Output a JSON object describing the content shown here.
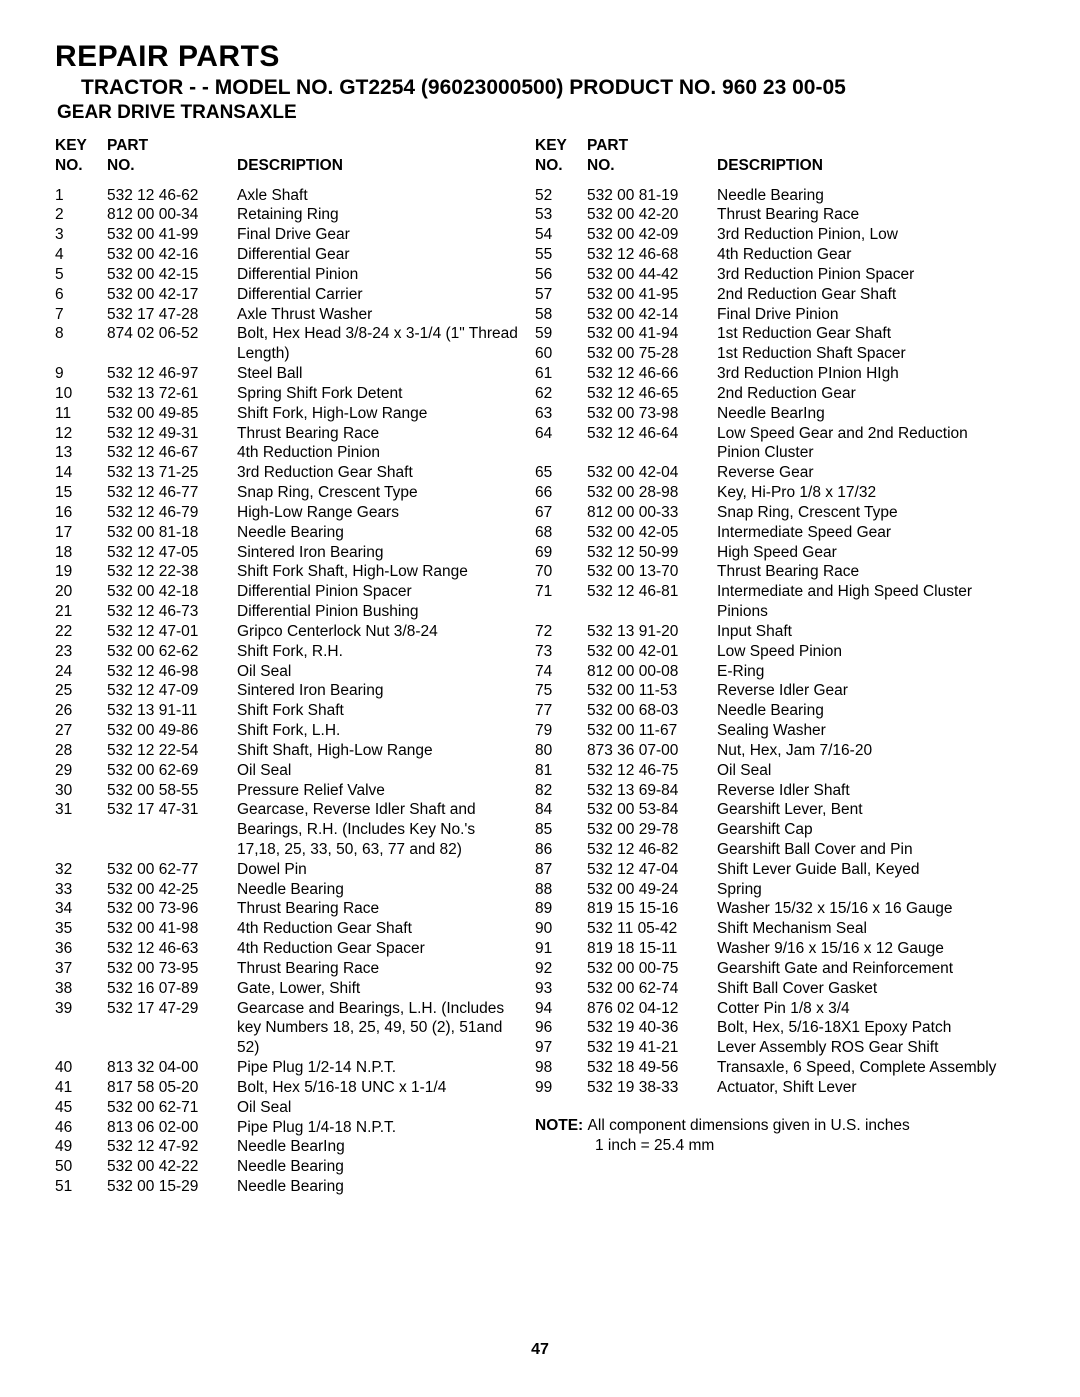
{
  "title": "REPAIR PARTS",
  "subtitle": "TRACTOR - - MODEL NO. GT2254 (96023000500) PRODUCT NO. 960 23 00-05",
  "section": "GEAR DRIVE TRANSAXLE",
  "headers": {
    "key1": "KEY",
    "key2": "NO.",
    "part1": "PART",
    "part2": "NO.",
    "desc": "DESCRIPTION"
  },
  "left": [
    {
      "k": "1",
      "p": "532 12 46-62",
      "d": "Axle Shaft"
    },
    {
      "k": "2",
      "p": "812 00 00-34",
      "d": "Retaining Ring"
    },
    {
      "k": "3",
      "p": "532 00 41-99",
      "d": "Final Drive Gear"
    },
    {
      "k": "4",
      "p": "532 00 42-16",
      "d": "Differential Gear"
    },
    {
      "k": "5",
      "p": "532 00 42-15",
      "d": "Differential Pinion"
    },
    {
      "k": "6",
      "p": "532 00 42-17",
      "d": "Differential Carrier"
    },
    {
      "k": "7",
      "p": "532 17 47-28",
      "d": "Axle Thrust Washer"
    },
    {
      "k": "8",
      "p": "874 02 06-52",
      "d": "Bolt, Hex Head  3/8-24 x 3-1/4 (1\" Thread Length)"
    },
    {
      "k": "9",
      "p": "532 12 46-97",
      "d": "Steel Ball"
    },
    {
      "k": "10",
      "p": "532 13 72-61",
      "d": "Spring Shift Fork Detent"
    },
    {
      "k": "11",
      "p": "532 00 49-85",
      "d": "Shift Fork, High-Low Range"
    },
    {
      "k": "12",
      "p": "532 12 49-31",
      "d": "Thrust Bearing Race"
    },
    {
      "k": "13",
      "p": "532 12 46-67",
      "d": "4th Reduction Pinion"
    },
    {
      "k": "14",
      "p": "532 13 71-25",
      "d": "3rd Reduction Gear Shaft"
    },
    {
      "k": "15",
      "p": "532 12 46-77",
      "d": "Snap Ring, Crescent Type"
    },
    {
      "k": "16",
      "p": "532 12 46-79",
      "d": "High-Low Range Gears"
    },
    {
      "k": "17",
      "p": "532 00 81-18",
      "d": "Needle Bearing"
    },
    {
      "k": "18",
      "p": "532 12 47-05",
      "d": "Sintered Iron Bearing"
    },
    {
      "k": "19",
      "p": "532 12 22-38",
      "d": "Shift Fork Shaft, High-Low Range"
    },
    {
      "k": "20",
      "p": "532 00 42-18",
      "d": "Differential Pinion Spacer"
    },
    {
      "k": "21",
      "p": "532 12 46-73",
      "d": "Differential Pinion Bushing"
    },
    {
      "k": "22",
      "p": "532 12 47-01",
      "d": "Gripco Centerlock Nut  3/8-24"
    },
    {
      "k": "23",
      "p": "532 00 62-62",
      "d": "Shift Fork, R.H."
    },
    {
      "k": "24",
      "p": "532 12 46-98",
      "d": "Oil Seal"
    },
    {
      "k": "25",
      "p": "532 12 47-09",
      "d": "Sintered Iron Bearing"
    },
    {
      "k": "26",
      "p": "532 13 91-11",
      "d": "Shift Fork Shaft"
    },
    {
      "k": "27",
      "p": "532 00 49-86",
      "d": "Shift Fork, L.H."
    },
    {
      "k": "28",
      "p": "532 12 22-54",
      "d": "Shift Shaft, High-Low Range"
    },
    {
      "k": "29",
      "p": "532 00 62-69",
      "d": "Oil Seal"
    },
    {
      "k": "30",
      "p": "532 00 58-55",
      "d": "Pressure Relief Valve"
    },
    {
      "k": "31",
      "p": "532 17 47-31",
      "d": "Gearcase, Reverse Idler Shaft and Bearings, R.H. (Includes Key No.'s 17,18, 25, 33, 50, 63, 77 and 82)"
    },
    {
      "k": "32",
      "p": "532 00 62-77",
      "d": "Dowel Pin"
    },
    {
      "k": "33",
      "p": "532 00 42-25",
      "d": "Needle Bearing"
    },
    {
      "k": "34",
      "p": "532 00 73-96",
      "d": "Thrust Bearing Race"
    },
    {
      "k": "35",
      "p": "532 00 41-98",
      "d": "4th Reduction Gear Shaft"
    },
    {
      "k": "36",
      "p": "532 12 46-63",
      "d": "4th Reduction Gear Spacer"
    },
    {
      "k": "37",
      "p": "532 00 73-95",
      "d": "Thrust Bearing Race"
    },
    {
      "k": "38",
      "p": "532 16 07-89",
      "d": "Gate, Lower, Shift"
    },
    {
      "k": "39",
      "p": "532 17 47-29",
      "d": "Gearcase and Bearings, L.H. (Includes key Numbers 18, 25, 49, 50 (2), 51and 52)"
    },
    {
      "k": "40",
      "p": "813 32 04-00",
      "d": "Pipe Plug  1/2-14 N.P.T."
    },
    {
      "k": "41",
      "p": "817 58 05-20",
      "d": "Bolt, Hex  5/16-18 UNC x 1-1/4"
    },
    {
      "k": "45",
      "p": "532 00 62-71",
      "d": "Oil Seal"
    },
    {
      "k": "46",
      "p": "813 06 02-00",
      "d": "Pipe Plug  1/4-18 N.P.T."
    },
    {
      "k": "49",
      "p": "532 12 47-92",
      "d": "Needle BearIng"
    },
    {
      "k": "50",
      "p": "532 00 42-22",
      "d": "Needle Bearing"
    },
    {
      "k": "51",
      "p": "532 00 15-29",
      "d": "Needle Bearing"
    }
  ],
  "right": [
    {
      "k": "52",
      "p": "532 00 81-19",
      "d": "Needle Bearing"
    },
    {
      "k": "53",
      "p": "532 00 42-20",
      "d": "Thrust Bearing Race"
    },
    {
      "k": "54",
      "p": "532 00 42-09",
      "d": "3rd Reduction Pinion, Low"
    },
    {
      "k": "55",
      "p": "532 12 46-68",
      "d": "4th Reduction Gear"
    },
    {
      "k": "56",
      "p": "532 00 44-42",
      "d": "3rd Reduction Pinion Spacer"
    },
    {
      "k": "57",
      "p": "532 00 41-95",
      "d": "2nd Reduction Gear Shaft"
    },
    {
      "k": "58",
      "p": "532 00 42-14",
      "d": "Final Drive Pinion"
    },
    {
      "k": "59",
      "p": "532 00 41-94",
      "d": "1st Reduction Gear Shaft"
    },
    {
      "k": "60",
      "p": "532 00 75-28",
      "d": "1st Reduction Shaft Spacer"
    },
    {
      "k": "61",
      "p": "532 12 46-66",
      "d": "3rd Reduction PInion HIgh"
    },
    {
      "k": "62",
      "p": "532 12 46-65",
      "d": "2nd Reduction Gear"
    },
    {
      "k": "63",
      "p": "532 00 73-98",
      "d": "Needle BearIng"
    },
    {
      "k": "64",
      "p": "532 12 46-64",
      "d": "Low Speed Gear and 2nd Reduction Pinion Cluster"
    },
    {
      "k": "65",
      "p": "532 00 42-04",
      "d": "Reverse Gear"
    },
    {
      "k": "66",
      "p": "532 00 28-98",
      "d": "Key, Hi-Pro  1/8 x 17/32"
    },
    {
      "k": "67",
      "p": "812 00 00-33",
      "d": "Snap Ring, Crescent Type"
    },
    {
      "k": "68",
      "p": "532 00 42-05",
      "d": "Intermediate Speed Gear"
    },
    {
      "k": "69",
      "p": "532 12 50-99",
      "d": "High Speed Gear"
    },
    {
      "k": "70",
      "p": "532 00 13-70",
      "d": "Thrust Bearing Race"
    },
    {
      "k": "71",
      "p": "532 12 46-81",
      "d": "Intermediate and High Speed Cluster Pinions"
    },
    {
      "k": "72",
      "p": "532 13 91-20",
      "d": "Input Shaft"
    },
    {
      "k": "73",
      "p": "532 00 42-01",
      "d": "Low Speed Pinion"
    },
    {
      "k": "74",
      "p": "812 00 00-08",
      "d": "E-Ring"
    },
    {
      "k": "75",
      "p": "532 00 11-53",
      "d": "Reverse Idler Gear"
    },
    {
      "k": "77",
      "p": "532 00 68-03",
      "d": "Needle Bearing"
    },
    {
      "k": "79",
      "p": "532 00 11-67",
      "d": "Sealing Washer"
    },
    {
      "k": "80",
      "p": "873 36 07-00",
      "d": "Nut, Hex, Jam  7/16-20"
    },
    {
      "k": "81",
      "p": "532 12 46-75",
      "d": "Oil Seal"
    },
    {
      "k": "82",
      "p": "532 13 69-84",
      "d": "Reverse Idler Shaft"
    },
    {
      "k": "84",
      "p": "532 00 53-84",
      "d": "Gearshift Lever, Bent"
    },
    {
      "k": "85",
      "p": "532 00 29-78",
      "d": "Gearshift Cap"
    },
    {
      "k": "86",
      "p": "532 12 46-82",
      "d": "Gearshift Ball Cover and Pin"
    },
    {
      "k": "87",
      "p": "532 12 47-04",
      "d": "Shift Lever Guide Ball, Keyed"
    },
    {
      "k": "88",
      "p": "532 00 49-24",
      "d": "Spring"
    },
    {
      "k": "89",
      "p": "819 15 15-16",
      "d": "Washer  15/32 x 15/16 x 16 Gauge"
    },
    {
      "k": "90",
      "p": "532 11 05-42",
      "d": "Shift Mechanism Seal"
    },
    {
      "k": "91",
      "p": "819 18 15-11",
      "d": "Washer  9/16 x 15/16 x 12 Gauge"
    },
    {
      "k": "92",
      "p": "532 00 00-75",
      "d": "Gearshift Gate and Reinforcement"
    },
    {
      "k": "93",
      "p": "532 00 62-74",
      "d": "Shift Ball Cover Gasket"
    },
    {
      "k": "94",
      "p": "876 02 04-12",
      "d": "Cotter Pin  1/8 x 3/4"
    },
    {
      "k": "96",
      "p": "532 19 40-36",
      "d": "Bolt, Hex, 5/16-18X1 Epoxy Patch"
    },
    {
      "k": "97",
      "p": "532 19 41-21",
      "d": "Lever Assembly ROS Gear Shift"
    },
    {
      "k": "98",
      "p": "532 18 49-56",
      "d": "Transaxle, 6 Speed, Complete Assembly"
    },
    {
      "k": "99",
      "p": "532 19 38-33",
      "d": "Actuator, Shift Lever"
    }
  ],
  "noteLabel": "NOTE:",
  "noteText": "All component dimensions given in U.S. inches",
  "noteConv": "1 inch = 25.4 mm",
  "pagenum": "47"
}
